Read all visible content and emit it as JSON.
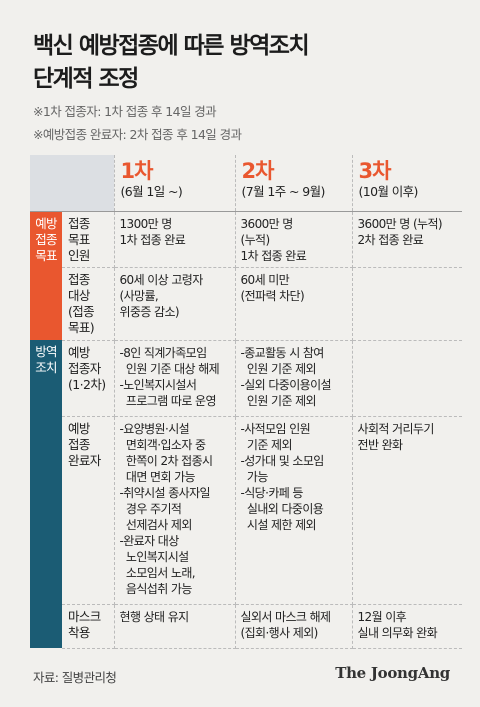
{
  "title": {
    "line1": "백신 예방접종에 따른 방역조치",
    "line2": "단계적 조정"
  },
  "notes": [
    "※1차 접종자: 1차 접종 후 14일 경과",
    "※예방접종 완료자: 2차 접종 후 14일 경과"
  ],
  "stages": [
    {
      "name": "1차",
      "date": "(6월 1일 ~)"
    },
    {
      "name": "2차",
      "date": "(7월 1주 ~ 9월)"
    },
    {
      "name": "3차",
      "date": "(10월 이후)"
    }
  ],
  "sections": {
    "vaccination": [
      "예방",
      "접종",
      "목표"
    ],
    "measures": [
      "방역",
      "조치"
    ]
  },
  "rows": [
    {
      "label": [
        "접종",
        "목표",
        "인원"
      ],
      "cells": [
        [
          "1300만 명",
          "1차 접종 완료"
        ],
        [
          "3600만 명",
          "(누적)",
          "1차 접종 완료"
        ],
        [
          "3600만 명 (누적)",
          "2차 접종 완료"
        ]
      ]
    },
    {
      "label": [
        "접종",
        "대상",
        "(접종",
        "목표)"
      ],
      "cells": [
        [
          "60세 이상 고령자",
          "(사망률,",
          "위중증 감소)"
        ],
        [
          "60세 미만",
          "(전파력 차단)"
        ],
        []
      ]
    },
    {
      "label": [
        "예방",
        "접종자",
        "(1·2차)"
      ],
      "cells": [
        [
          "-8인 직계가족모임",
          "  인원 기준 대상 해제",
          "-노인복지시설서",
          "  프로그램 따로 운영"
        ],
        [
          "-종교활동 시 참여",
          "  인원 기준 제외",
          "-실외 다중이용이설",
          "  인원 기준 제외"
        ],
        []
      ]
    },
    {
      "label": [
        "예방",
        "접종",
        "완료자"
      ],
      "cells": [
        [
          "-요양병원·시설",
          "  면회객·입소자 중",
          "  한쪽이 2차 접종시",
          "  대면 면회 가능",
          "-취약시설 종사자일",
          "  경우 주기적",
          "  선제검사 제외",
          "-완료자 대상",
          "  노인복지시설",
          "  소모임서 노래,",
          "  음식섭취 가능"
        ],
        [
          "-사적모임 인원",
          "  기준 제외",
          "-성가대 및 소모임",
          "  가능",
          "-식당·카페 등",
          "  실내외 다중이용",
          "  시설 제한 제외"
        ],
        [
          "사회적 거리두기",
          "전반 완화"
        ]
      ]
    },
    {
      "label": [
        "마스크",
        "착용"
      ],
      "cells": [
        [
          "현행 상태 유지"
        ],
        [
          "실외서 마스크 해제",
          "(집회·행사 제외)"
        ],
        [
          "12월 이후",
          "실내 의무화 완화"
        ]
      ]
    }
  ],
  "footer": {
    "source": "자료: 질병관리청",
    "logo": "The JoongAng"
  },
  "colors": {
    "accent_orange": "#e9572f",
    "accent_teal": "#1b5c74",
    "background": "#f1f0ed"
  }
}
